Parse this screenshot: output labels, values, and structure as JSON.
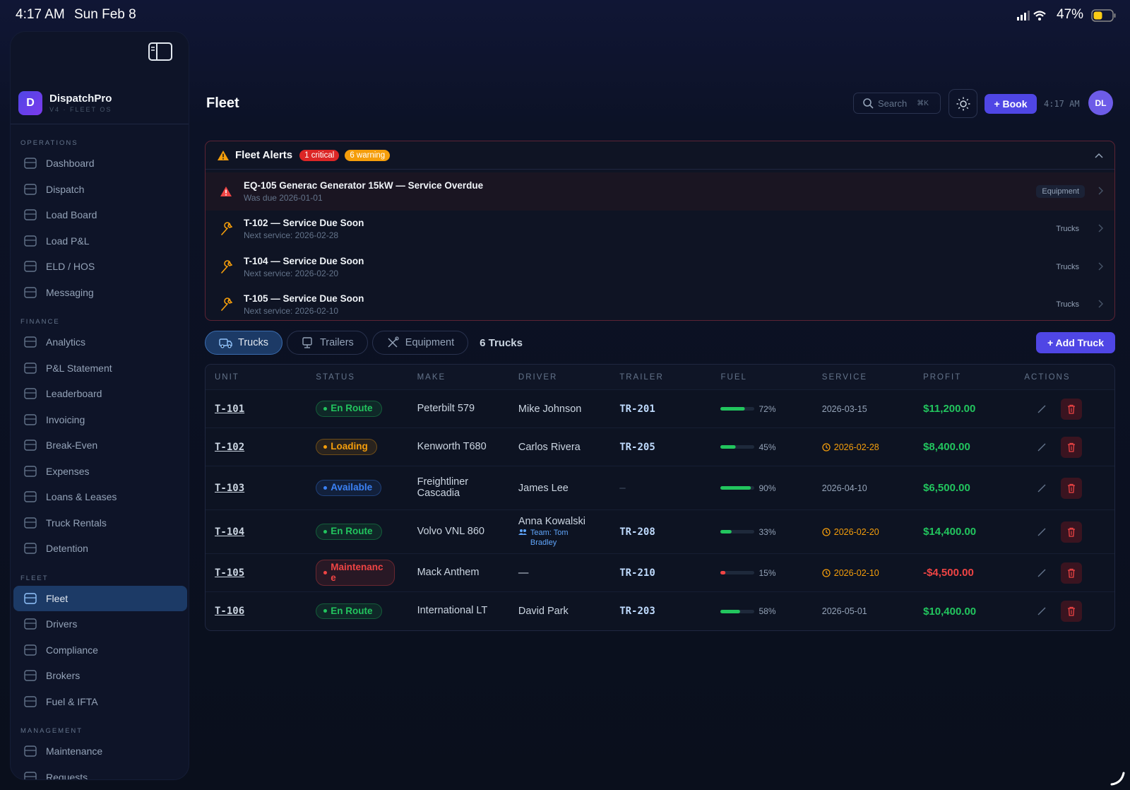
{
  "status_bar": {
    "time": "4:17 AM",
    "date": "Sun Feb 8",
    "battery": "47%"
  },
  "sidebar": {
    "brand_initial": "D",
    "brand": "DispatchPro",
    "version": "V4 · FLEET OS",
    "sections": [
      {
        "title": "OPERATIONS",
        "items": [
          {
            "label": "Dashboard"
          },
          {
            "label": "Dispatch"
          },
          {
            "label": "Load Board"
          },
          {
            "label": "Load P&L"
          },
          {
            "label": "ELD / HOS"
          },
          {
            "label": "Messaging"
          }
        ]
      },
      {
        "title": "FINANCE",
        "items": [
          {
            "label": "Analytics"
          },
          {
            "label": "P&L Statement"
          },
          {
            "label": "Leaderboard"
          },
          {
            "label": "Invoicing"
          },
          {
            "label": "Break-Even"
          },
          {
            "label": "Expenses"
          },
          {
            "label": "Loans & Leases"
          },
          {
            "label": "Truck Rentals"
          },
          {
            "label": "Detention"
          }
        ]
      },
      {
        "title": "FLEET",
        "items": [
          {
            "label": "Fleet",
            "active": true
          },
          {
            "label": "Drivers"
          },
          {
            "label": "Compliance"
          },
          {
            "label": "Brokers"
          },
          {
            "label": "Fuel & IFTA"
          }
        ]
      },
      {
        "title": "MANAGEMENT",
        "items": [
          {
            "label": "Maintenance"
          },
          {
            "label": "Requests"
          }
        ]
      }
    ]
  },
  "header": {
    "title": "Fleet",
    "search": "Search",
    "shortcut": "⌘K",
    "book": "+ Book",
    "time": "4:17 AM",
    "avatar": "DL"
  },
  "alerts": {
    "title": "Fleet Alerts",
    "critical": "1 critical",
    "warning": "6 warning",
    "items": [
      {
        "level": "critical",
        "title": "EQ-105 Generac Generator 15kW — Service Overdue",
        "subtitle": "Was due 2026-01-01",
        "tag": "Equipment"
      },
      {
        "level": "warning",
        "title": "T-102 — Service Due Soon",
        "subtitle": "Next service: 2026-02-28",
        "tag": "Trucks"
      },
      {
        "level": "warning",
        "title": "T-104 — Service Due Soon",
        "subtitle": "Next service: 2026-02-20",
        "tag": "Trucks"
      },
      {
        "level": "warning",
        "title": "T-105 — Service Due Soon",
        "subtitle": "Next service: 2026-02-10",
        "tag": "Trucks"
      }
    ]
  },
  "tabs": {
    "items": [
      "Trucks",
      "Trailers",
      "Equipment"
    ],
    "count": "6 Trucks",
    "add": "+ Add Truck"
  },
  "table": {
    "columns": [
      "UNIT",
      "STATUS",
      "MAKE",
      "DRIVER",
      "TRAILER",
      "FUEL",
      "SERVICE",
      "PROFIT",
      "ACTIONS"
    ],
    "rows": [
      {
        "unit": "T-101",
        "status": "En Route",
        "status_color": "#22c55e",
        "make": "Peterbilt 579",
        "driver": "Mike Johnson",
        "trailer": "TR-201",
        "fuel": 72,
        "fuel_label": "72%",
        "fuel_color": "#22c55e",
        "service": "2026-03-15",
        "service_due": false,
        "profit": "$11,200.00"
      },
      {
        "unit": "T-102",
        "status": "Loading",
        "status_color": "#f59e0b",
        "make": "Kenworth T680",
        "driver": "Carlos Rivera",
        "trailer": "TR-205",
        "fuel": 45,
        "fuel_label": "45%",
        "fuel_color": "#22c55e",
        "service": "2026-02-28",
        "service_due": true,
        "profit": "$8,400.00"
      },
      {
        "unit": "T-103",
        "status": "Available",
        "status_color": "#3b82f6",
        "make": "Freightliner Cascadia",
        "driver": "James Lee",
        "trailer": "—",
        "fuel": 90,
        "fuel_label": "90%",
        "fuel_color": "#22c55e",
        "service": "2026-04-10",
        "service_due": false,
        "profit": "$6,500.00"
      },
      {
        "unit": "T-104",
        "status": "En Route",
        "status_color": "#22c55e",
        "make": "Volvo VNL 860",
        "driver": "Anna Kowalski",
        "team": "Team: Tom Bradley",
        "trailer": "TR-208",
        "fuel": 33,
        "fuel_label": "33%",
        "fuel_color": "#22c55e",
        "service": "2026-02-20",
        "service_due": true,
        "profit": "$14,400.00"
      },
      {
        "unit": "T-105",
        "status": "Maintenance",
        "status_color": "#ef4444",
        "make": "Mack Anthem",
        "driver": "—",
        "trailer": "TR-210",
        "fuel": 15,
        "fuel_label": "15%",
        "fuel_color": "#ef4444",
        "service": "2026-02-10",
        "service_due": true,
        "profit": "-$4,500.00"
      },
      {
        "unit": "T-106",
        "status": "En Route",
        "status_color": "#22c55e",
        "make": "International LT",
        "driver": "David Park",
        "trailer": "TR-203",
        "fuel": 58,
        "fuel_label": "58%",
        "fuel_color": "#22c55e",
        "service": "2026-05-01",
        "service_due": false,
        "profit": "$10,400.00"
      }
    ]
  }
}
